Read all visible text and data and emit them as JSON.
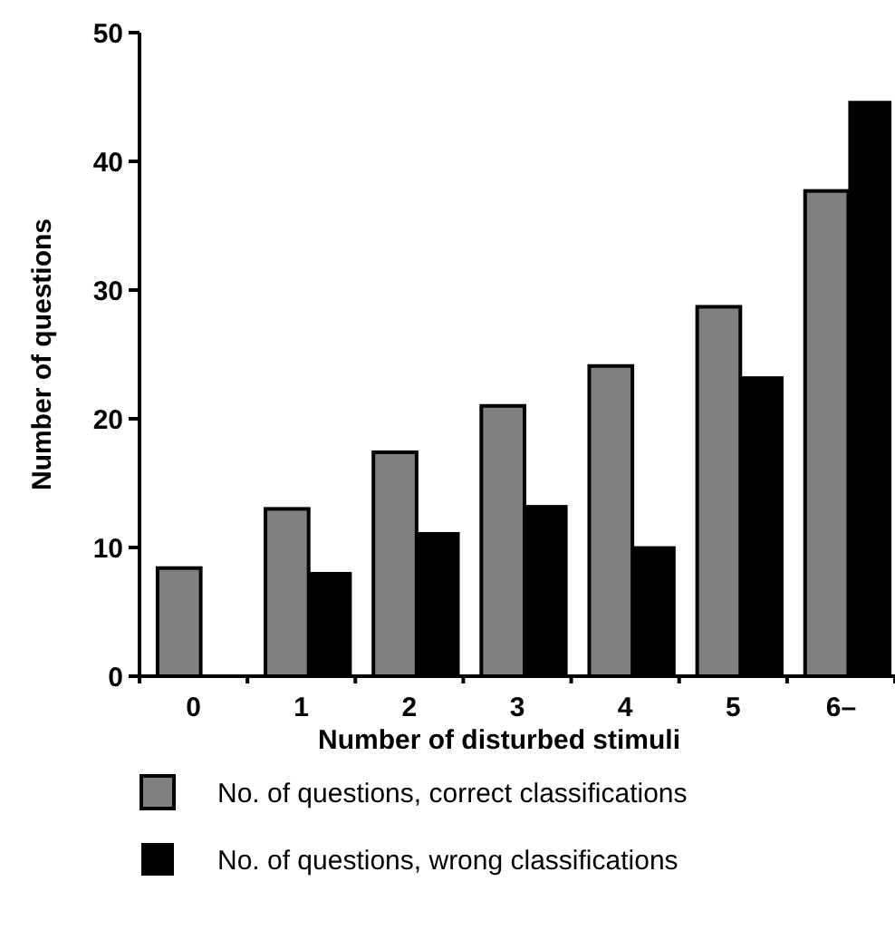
{
  "chart_data": {
    "type": "bar",
    "xlabel": "Number of disturbed stimuli",
    "ylabel": "Number of questions",
    "categories": [
      "0",
      "1",
      "2",
      "3",
      "4",
      "5",
      "6–"
    ],
    "ylim": [
      0,
      50
    ],
    "yticks": [
      0,
      10,
      20,
      30,
      40,
      50
    ],
    "grid": false,
    "legend": "bottom",
    "series": [
      {
        "name": "No. of questions, correct classifications",
        "color": "#808080",
        "values": [
          8.4,
          13,
          17.4,
          21,
          24.1,
          28.7,
          37.7
        ]
      },
      {
        "name": "No. of questions, wrong classifications",
        "color": "#000000",
        "values": [
          0,
          8.1,
          11.2,
          13.3,
          10.1,
          23.3,
          44.7
        ]
      }
    ]
  }
}
